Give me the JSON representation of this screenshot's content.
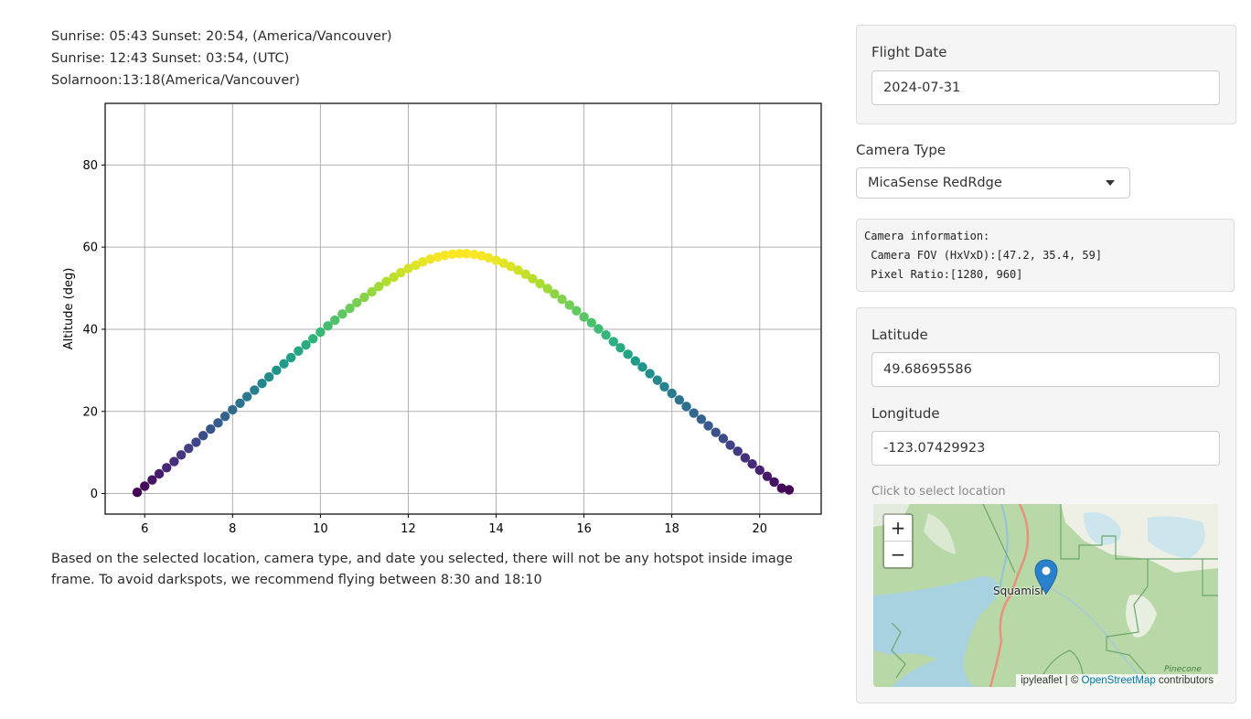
{
  "sun_info": {
    "line1": "Sunrise: 05:43 Sunset: 20:54, (America/Vancouver)",
    "line2": "Sunrise: 12:43 Sunset: 03:54, (UTC)",
    "line3": "Solarnoon:13:18(America/Vancouver)"
  },
  "recommendation": "Based on the selected location, camera type, and date you selected, there will not be any hotspot inside image frame. To avoid darkspots, we recommend flying between 8:30 and 18:10",
  "flight_date": {
    "label": "Flight Date",
    "value": "2024-07-31"
  },
  "camera_type": {
    "label": "Camera Type",
    "selected": "MicaSense RedRdge"
  },
  "camera_info": {
    "text": "Camera information:\n Camera FOV (HxVxD):[47.2, 35.4, 59]\n Pixel Ratio:[1280, 960]"
  },
  "location": {
    "latitude_label": "Latitude",
    "latitude_value": "49.68695586",
    "longitude_label": "Longitude",
    "longitude_value": "-123.07429923",
    "map_hint": "Click to select location"
  },
  "map": {
    "zoom_in": "+",
    "zoom_out": "−",
    "place_label": "Squamish",
    "small_label": "Pinecone",
    "attribution_prefix": "ipyleaflet | © ",
    "attribution_link": "OpenStreetMap",
    "attribution_suffix": " contributors",
    "marker_icon": "map-marker-icon",
    "colors": {
      "land": "#b7d7a6",
      "water": "#aad3df",
      "road": "#e8927c",
      "boundary": "#6aa86a",
      "snow": "#f2efe9",
      "marker": "#2a81cb"
    }
  },
  "chart_data": {
    "type": "scatter",
    "title": "",
    "xlabel": "",
    "ylabel": "Altitude (deg)",
    "xlim": [
      5.1,
      21.4
    ],
    "ylim": [
      -5,
      95
    ],
    "xticks": [
      6,
      8,
      10,
      12,
      14,
      16,
      18,
      20
    ],
    "yticks": [
      0,
      20,
      40,
      60,
      80
    ],
    "grid": true,
    "colormap": "viridis",
    "color_by": "altitude",
    "x": [
      5.83,
      6.0,
      6.17,
      6.33,
      6.5,
      6.67,
      6.83,
      7.0,
      7.17,
      7.33,
      7.5,
      7.67,
      7.83,
      8.0,
      8.17,
      8.33,
      8.5,
      8.67,
      8.83,
      9.0,
      9.17,
      9.33,
      9.5,
      9.67,
      9.83,
      10.0,
      10.17,
      10.33,
      10.5,
      10.67,
      10.83,
      11.0,
      11.17,
      11.33,
      11.5,
      11.67,
      11.83,
      12.0,
      12.17,
      12.33,
      12.5,
      12.67,
      12.83,
      13.0,
      13.17,
      13.33,
      13.5,
      13.67,
      13.83,
      14.0,
      14.17,
      14.33,
      14.5,
      14.67,
      14.83,
      15.0,
      15.17,
      15.33,
      15.5,
      15.67,
      15.83,
      16.0,
      16.17,
      16.33,
      16.5,
      16.67,
      16.83,
      17.0,
      17.17,
      17.33,
      17.5,
      17.67,
      17.83,
      18.0,
      18.17,
      18.33,
      18.5,
      18.67,
      18.83,
      19.0,
      19.17,
      19.33,
      19.5,
      19.67,
      19.83,
      20.0,
      20.17,
      20.33,
      20.5,
      20.67
    ],
    "y": [
      0.3,
      1.8,
      3.3,
      4.8,
      6.3,
      7.8,
      9.4,
      11.0,
      12.5,
      14.1,
      15.7,
      17.2,
      18.8,
      20.4,
      22.0,
      23.6,
      25.2,
      26.8,
      28.4,
      30.0,
      31.6,
      33.1,
      34.7,
      36.2,
      37.7,
      39.3,
      40.8,
      42.2,
      43.7,
      45.1,
      46.5,
      47.8,
      49.1,
      50.4,
      51.6,
      52.7,
      53.8,
      54.8,
      55.6,
      56.4,
      57.1,
      57.6,
      58.0,
      58.3,
      58.4,
      58.4,
      58.2,
      57.9,
      57.4,
      56.8,
      56.1,
      55.3,
      54.4,
      53.4,
      52.3,
      51.1,
      49.9,
      48.6,
      47.3,
      45.9,
      44.5,
      43.0,
      41.6,
      40.1,
      38.6,
      37.0,
      35.5,
      33.9,
      32.3,
      30.8,
      29.2,
      27.6,
      26.0,
      24.4,
      22.8,
      21.2,
      19.6,
      18.1,
      16.5,
      14.9,
      13.4,
      11.8,
      10.3,
      8.7,
      7.2,
      5.7,
      4.2,
      2.8,
      1.3,
      0.9
    ]
  }
}
